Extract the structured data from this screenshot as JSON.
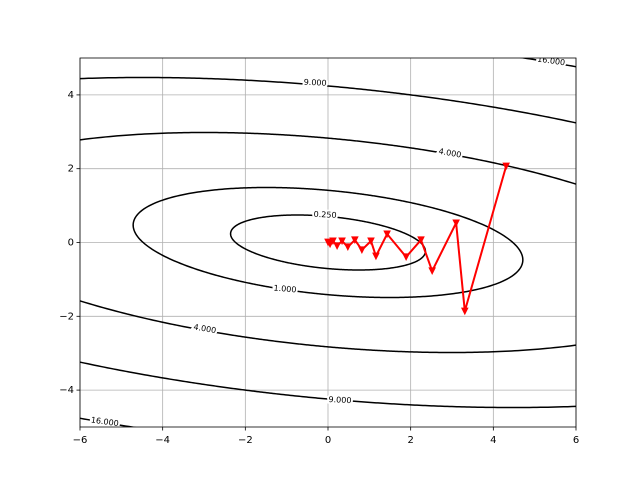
{
  "chart_data": {
    "type": "contour",
    "quadratic_form": [
      [
        0.05,
        0.05
      ],
      [
        0.05,
        0.5
      ]
    ],
    "levels": [
      {
        "value": 0.25,
        "label": "0.250"
      },
      {
        "value": 1,
        "label": "1.000"
      },
      {
        "value": 4,
        "label": "4.000"
      },
      {
        "value": 9,
        "label": "9.000"
      },
      {
        "value": 16,
        "label": "16.000"
      }
    ],
    "contour_color": "#000000",
    "path": {
      "color": "#ff0000",
      "x": [
        4.31,
        3.31,
        3.1,
        2.52,
        2.25,
        1.89,
        1.43,
        1.16,
        1.04,
        0.82,
        0.65,
        0.48,
        0.34,
        0.22,
        0.12,
        0.05,
        0.0
      ],
      "y": [
        2.07,
        -1.86,
        0.53,
        -0.77,
        0.07,
        -0.39,
        0.23,
        -0.37,
        0.04,
        -0.2,
        0.07,
        -0.12,
        0.04,
        -0.09,
        0.04,
        -0.04,
        0.01
      ]
    },
    "xlim": [
      -6,
      6
    ],
    "ylim": [
      -5,
      5
    ],
    "xticks": [
      {
        "value": -6,
        "label": "−6"
      },
      {
        "value": -4,
        "label": "−4"
      },
      {
        "value": -2,
        "label": "−2"
      },
      0,
      2,
      4,
      6
    ],
    "yticks": [
      {
        "value": -4,
        "label": "−4"
      },
      {
        "value": -2,
        "label": "−2"
      },
      0,
      2,
      4
    ],
    "grid": true
  }
}
